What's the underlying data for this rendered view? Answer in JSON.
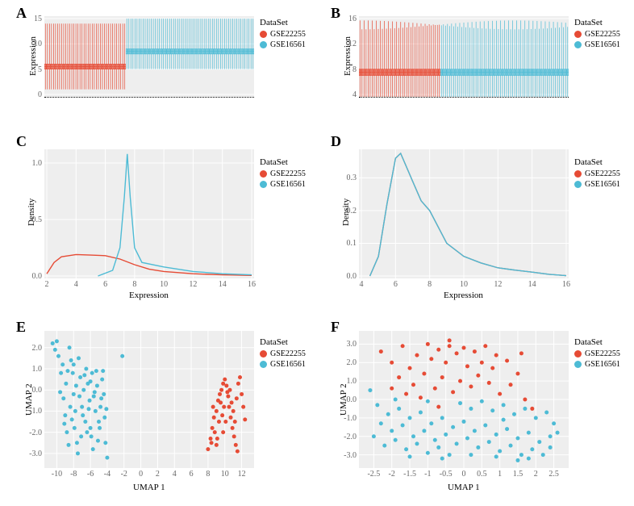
{
  "colors": {
    "red": "#e64b35",
    "cyan": "#4dbbd5",
    "panel_bg": "#eeeeee",
    "grid": "#ffffff",
    "text": "#000000",
    "tick": "#666666"
  },
  "legend": {
    "title": "DataSet",
    "items": [
      {
        "label": "GSE22255",
        "color": "#e64b35"
      },
      {
        "label": "GSE16561",
        "color": "#4dbbd5"
      }
    ]
  },
  "panel_labels": [
    "A",
    "B",
    "C",
    "D",
    "E",
    "F"
  ],
  "panelA": {
    "type": "boxplot-strip",
    "xlabel": "",
    "ylabel": "Expression",
    "ylim": [
      0,
      15
    ],
    "yticks": [
      0,
      5,
      10,
      15
    ],
    "red_range": [
      5,
      6,
      1,
      14
    ],
    "cyan_range": [
      8,
      9,
      5,
      15
    ],
    "n_red": 40,
    "n_cyan": 63
  },
  "panelB": {
    "type": "boxplot-strip",
    "ylabel": "Expression",
    "ylim": [
      4,
      16
    ],
    "yticks": [
      4,
      8,
      12,
      16
    ],
    "red_range": [
      7,
      8,
      3,
      15
    ],
    "cyan_range": [
      7,
      8,
      3,
      15
    ],
    "n_red": 40,
    "n_cyan": 63
  },
  "panelC": {
    "type": "density",
    "xlabel": "Expression",
    "ylabel": "Density",
    "xlim": [
      2,
      16
    ],
    "xticks": [
      2,
      4,
      6,
      8,
      10,
      12,
      14,
      16
    ],
    "ylim": [
      0,
      1.1
    ],
    "yticks": [
      0,
      0.5,
      1.0
    ],
    "red_curve": [
      [
        2,
        0.02
      ],
      [
        2.5,
        0.12
      ],
      [
        3,
        0.17
      ],
      [
        3.5,
        0.18
      ],
      [
        4,
        0.19
      ],
      [
        5,
        0.185
      ],
      [
        6,
        0.18
      ],
      [
        7,
        0.15
      ],
      [
        8,
        0.1
      ],
      [
        9,
        0.06
      ],
      [
        10,
        0.04
      ],
      [
        12,
        0.02
      ],
      [
        14,
        0.01
      ],
      [
        16,
        0.005
      ]
    ],
    "cyan_curve": [
      [
        5.5,
        0.0
      ],
      [
        6.5,
        0.05
      ],
      [
        7.0,
        0.25
      ],
      [
        7.3,
        0.7
      ],
      [
        7.5,
        1.08
      ],
      [
        7.7,
        0.7
      ],
      [
        8.0,
        0.25
      ],
      [
        8.5,
        0.12
      ],
      [
        10,
        0.08
      ],
      [
        12,
        0.04
      ],
      [
        14,
        0.02
      ],
      [
        16,
        0.01
      ]
    ]
  },
  "panelD": {
    "type": "density",
    "xlabel": "Expression",
    "ylabel": "Density",
    "xlim": [
      4,
      16
    ],
    "xticks": [
      4,
      6,
      8,
      10,
      12,
      14,
      16
    ],
    "ylim": [
      0,
      0.38
    ],
    "yticks": [
      0,
      0.1,
      0.2,
      0.3
    ],
    "red_curve": [
      [
        4.5,
        0.0
      ],
      [
        5.0,
        0.06
      ],
      [
        5.5,
        0.22
      ],
      [
        6.0,
        0.36
      ],
      [
        6.3,
        0.375
      ],
      [
        7.0,
        0.29
      ],
      [
        7.5,
        0.23
      ],
      [
        8.0,
        0.2
      ],
      [
        8.5,
        0.15
      ],
      [
        9.0,
        0.1
      ],
      [
        10,
        0.06
      ],
      [
        11,
        0.04
      ],
      [
        12,
        0.025
      ],
      [
        13,
        0.018
      ],
      [
        14,
        0.012
      ],
      [
        15,
        0.005
      ],
      [
        16,
        0.001
      ]
    ],
    "cyan_curve": [
      [
        4.5,
        0.0
      ],
      [
        5.0,
        0.06
      ],
      [
        5.5,
        0.22
      ],
      [
        6.0,
        0.36
      ],
      [
        6.3,
        0.375
      ],
      [
        7.0,
        0.29
      ],
      [
        7.5,
        0.23
      ],
      [
        8.0,
        0.2
      ],
      [
        8.5,
        0.15
      ],
      [
        9.0,
        0.1
      ],
      [
        10,
        0.06
      ],
      [
        11,
        0.04
      ],
      [
        12,
        0.025
      ],
      [
        13,
        0.018
      ],
      [
        14,
        0.012
      ],
      [
        15,
        0.005
      ],
      [
        16,
        0.001
      ]
    ]
  },
  "panelE": {
    "type": "scatter",
    "xlabel": "UMAP 1",
    "ylabel": "UMAP 2",
    "xlim": [
      -11,
      13
    ],
    "xticks": [
      -10,
      -8,
      -6,
      -4,
      -2,
      0,
      2,
      4,
      6,
      8,
      10,
      12
    ],
    "ylim": [
      -3.5,
      2.6
    ],
    "yticks": [
      -3,
      -2,
      -1,
      0,
      1,
      2
    ],
    "cyan_points": [
      [
        -10.5,
        2.2
      ],
      [
        -10.2,
        1.9
      ],
      [
        -10.0,
        2.3
      ],
      [
        -9.8,
        1.6
      ],
      [
        -9.5,
        0.8
      ],
      [
        -9.2,
        -0.4
      ],
      [
        -9.0,
        -1.2
      ],
      [
        -8.8,
        -2.0
      ],
      [
        -8.6,
        -2.6
      ],
      [
        -8.5,
        2.0
      ],
      [
        -8.3,
        1.4
      ],
      [
        -8.1,
        0.8
      ],
      [
        -8.0,
        -0.2
      ],
      [
        -7.8,
        -1.0
      ],
      [
        -7.6,
        -2.5
      ],
      [
        -7.5,
        -3.0
      ],
      [
        -7.4,
        1.5
      ],
      [
        -7.2,
        0.6
      ],
      [
        -7.0,
        -0.8
      ],
      [
        -6.8,
        0.0
      ],
      [
        -6.6,
        -1.5
      ],
      [
        -6.5,
        1.0
      ],
      [
        -6.3,
        0.3
      ],
      [
        -6.1,
        -0.5
      ],
      [
        -6.0,
        -1.8
      ],
      [
        -5.9,
        -2.2
      ],
      [
        -5.8,
        0.8
      ],
      [
        -5.6,
        -0.3
      ],
      [
        -5.4,
        -1.0
      ],
      [
        -5.2,
        0.2
      ],
      [
        -5.0,
        -1.5
      ],
      [
        -4.8,
        -0.8
      ],
      [
        -4.6,
        0.5
      ],
      [
        -4.4,
        -0.2
      ],
      [
        -4.2,
        -2.5
      ],
      [
        -4.0,
        -3.2
      ],
      [
        -9.3,
        1.2
      ],
      [
        -8.9,
        0.3
      ],
      [
        -8.4,
        -0.8
      ],
      [
        -7.9,
        -1.8
      ],
      [
        -7.3,
        -0.3
      ],
      [
        -6.9,
        -1.2
      ],
      [
        -6.4,
        -2.0
      ],
      [
        -5.7,
        -2.8
      ],
      [
        -5.3,
        0.9
      ],
      [
        -4.9,
        -1.8
      ],
      [
        -8.7,
        0.9
      ],
      [
        -8.2,
        -1.4
      ],
      [
        -7.7,
        0.2
      ],
      [
        -7.1,
        -2.2
      ],
      [
        -6.7,
        0.7
      ],
      [
        -6.2,
        -0.9
      ],
      [
        -5.5,
        -0.1
      ],
      [
        -5.1,
        -2.4
      ],
      [
        -4.7,
        -0.4
      ],
      [
        -4.3,
        -1.3
      ],
      [
        -9.6,
        -0.1
      ],
      [
        -9.1,
        -1.6
      ],
      [
        -8.0,
        1.2
      ],
      [
        -6.0,
        0.4
      ],
      [
        -4.5,
        0.9
      ],
      [
        -4.1,
        -0.9
      ],
      [
        -2.2,
        1.6
      ]
    ],
    "red_points": [
      [
        8.0,
        -2.8
      ],
      [
        8.3,
        -2.3
      ],
      [
        8.5,
        -1.8
      ],
      [
        8.7,
        -1.3
      ],
      [
        9.0,
        -1.0
      ],
      [
        9.2,
        -0.5
      ],
      [
        9.4,
        -0.2
      ],
      [
        9.6,
        0.0
      ],
      [
        9.8,
        0.3
      ],
      [
        10.0,
        0.5
      ],
      [
        10.2,
        0.2
      ],
      [
        10.4,
        -0.3
      ],
      [
        10.5,
        -0.8
      ],
      [
        10.7,
        -1.3
      ],
      [
        10.9,
        -1.8
      ],
      [
        11.1,
        -2.2
      ],
      [
        11.3,
        -2.6
      ],
      [
        8.8,
        -2.0
      ],
      [
        9.3,
        -1.5
      ],
      [
        9.9,
        -0.8
      ],
      [
        10.3,
        -0.1
      ],
      [
        10.8,
        -0.6
      ],
      [
        11.0,
        -1.0
      ],
      [
        11.5,
        -2.9
      ],
      [
        8.4,
        -2.5
      ],
      [
        9.1,
        -2.3
      ],
      [
        9.5,
        -0.6
      ],
      [
        9.7,
        -1.2
      ],
      [
        10.1,
        -1.5
      ],
      [
        10.6,
        0.0
      ],
      [
        11.2,
        -1.5
      ],
      [
        11.6,
        0.3
      ],
      [
        11.8,
        0.6
      ],
      [
        12.0,
        -0.2
      ],
      [
        12.2,
        -0.8
      ],
      [
        12.4,
        -1.4
      ],
      [
        8.6,
        -0.8
      ],
      [
        9.0,
        -2.6
      ],
      [
        9.8,
        -2.0
      ],
      [
        11.4,
        -0.4
      ]
    ]
  },
  "panelF": {
    "type": "scatter",
    "xlabel": "UMAP 1",
    "ylabel": "UMAP 2",
    "xlim": [
      -2.8,
      2.8
    ],
    "xticks": [
      -2.5,
      -2.0,
      -1.5,
      -1.0,
      -0.5,
      0,
      0.5,
      1.0,
      1.5,
      2.0,
      2.5
    ],
    "ylim": [
      -3.5,
      3.5
    ],
    "yticks": [
      -3,
      -2,
      -1,
      0,
      1,
      2,
      3
    ],
    "red_points": [
      [
        -1.0,
        3.0
      ],
      [
        -0.7,
        2.7
      ],
      [
        -0.4,
        2.9
      ],
      [
        -0.2,
        2.5
      ],
      [
        0.0,
        2.8
      ],
      [
        0.3,
        2.6
      ],
      [
        0.6,
        2.9
      ],
      [
        0.9,
        2.4
      ],
      [
        -1.3,
        2.4
      ],
      [
        -0.9,
        2.2
      ],
      [
        -0.5,
        2.0
      ],
      [
        0.1,
        1.8
      ],
      [
        0.5,
        2.0
      ],
      [
        0.8,
        1.7
      ],
      [
        -1.5,
        1.7
      ],
      [
        -1.1,
        1.4
      ],
      [
        -0.6,
        1.2
      ],
      [
        -0.1,
        1.0
      ],
      [
        0.4,
        1.3
      ],
      [
        -1.8,
        1.2
      ],
      [
        -1.4,
        0.8
      ],
      [
        -0.8,
        0.6
      ],
      [
        -0.3,
        0.4
      ],
      [
        0.2,
        0.7
      ],
      [
        -2.0,
        0.6
      ],
      [
        -1.6,
        0.3
      ],
      [
        -1.2,
        0.1
      ],
      [
        -0.7,
        -0.4
      ],
      [
        1.0,
        0.3
      ],
      [
        1.3,
        0.8
      ],
      [
        1.5,
        1.4
      ],
      [
        1.7,
        0.0
      ],
      [
        1.2,
        2.1
      ],
      [
        1.6,
        2.5
      ],
      [
        0.7,
        0.9
      ],
      [
        -2.3,
        2.6
      ],
      [
        -2.0,
        2.0
      ],
      [
        -1.7,
        2.9
      ],
      [
        1.9,
        -0.5
      ],
      [
        -0.4,
        3.2
      ]
    ],
    "cyan_points": [
      [
        -2.4,
        -0.3
      ],
      [
        -2.1,
        -0.8
      ],
      [
        -1.8,
        -0.5
      ],
      [
        -1.5,
        -1.0
      ],
      [
        -1.2,
        -0.7
      ],
      [
        -0.9,
        -1.3
      ],
      [
        -0.6,
        -1.0
      ],
      [
        -0.3,
        -1.5
      ],
      [
        0.0,
        -1.2
      ],
      [
        0.3,
        -1.7
      ],
      [
        0.6,
        -1.4
      ],
      [
        0.9,
        -1.9
      ],
      [
        1.2,
        -1.6
      ],
      [
        1.5,
        -2.1
      ],
      [
        1.8,
        -1.8
      ],
      [
        2.1,
        -2.3
      ],
      [
        2.4,
        -2.0
      ],
      [
        -2.3,
        -1.3
      ],
      [
        -2.0,
        -1.7
      ],
      [
        -1.7,
        -1.4
      ],
      [
        -1.4,
        -2.0
      ],
      [
        -1.1,
        -1.7
      ],
      [
        -0.8,
        -2.2
      ],
      [
        -0.5,
        -1.9
      ],
      [
        -0.2,
        -2.4
      ],
      [
        0.1,
        -2.1
      ],
      [
        0.4,
        -2.6
      ],
      [
        0.7,
        -2.3
      ],
      [
        1.0,
        -2.8
      ],
      [
        1.3,
        -2.5
      ],
      [
        1.6,
        -3.0
      ],
      [
        1.9,
        -2.7
      ],
      [
        2.2,
        -3.0
      ],
      [
        -2.5,
        -2.0
      ],
      [
        -2.2,
        -2.5
      ],
      [
        -1.9,
        -2.2
      ],
      [
        -1.6,
        -2.7
      ],
      [
        -1.3,
        -2.4
      ],
      [
        -1.0,
        -2.9
      ],
      [
        -0.7,
        -2.6
      ],
      [
        -0.4,
        -3.0
      ],
      [
        -0.1,
        -0.2
      ],
      [
        0.2,
        -0.5
      ],
      [
        0.5,
        -0.1
      ],
      [
        0.8,
        -0.6
      ],
      [
        1.1,
        -0.3
      ],
      [
        1.4,
        -0.8
      ],
      [
        1.7,
        -0.5
      ],
      [
        2.0,
        -1.0
      ],
      [
        2.3,
        -0.7
      ],
      [
        2.5,
        -1.3
      ],
      [
        -2.6,
        0.5
      ],
      [
        -1.9,
        0.0
      ],
      [
        -1.0,
        -0.1
      ],
      [
        0.9,
        -3.1
      ],
      [
        1.5,
        -3.3
      ],
      [
        2.4,
        -2.6
      ],
      [
        -0.6,
        -3.2
      ],
      [
        0.2,
        -3.0
      ],
      [
        1.1,
        -1.1
      ],
      [
        1.8,
        -3.2
      ],
      [
        -1.5,
        -3.1
      ],
      [
        2.6,
        -1.8
      ]
    ]
  }
}
